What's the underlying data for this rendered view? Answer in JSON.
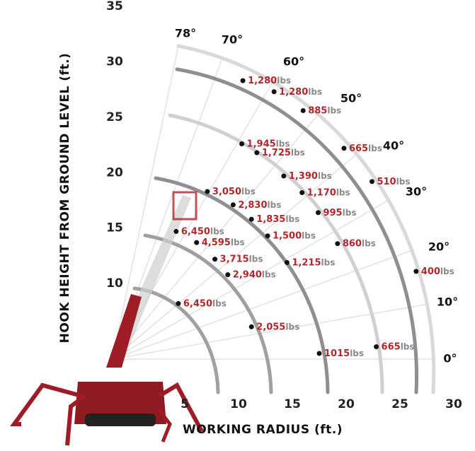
{
  "chart_data": {
    "type": "scatter",
    "xlabel": "WORKING RADIUS (ft.)",
    "ylabel": "HOOK HEIGHT FROM GROUND LEVEL (ft.)",
    "xlim": [
      0,
      30
    ],
    "ylim": [
      0,
      35
    ],
    "xticks": [
      5,
      10,
      15,
      20,
      25,
      30
    ],
    "yticks": [
      10,
      15,
      20,
      25,
      30,
      35
    ],
    "unit": "lbs",
    "point_color": "#111111",
    "angle_labels": [
      "78°",
      "70°",
      "60°",
      "50°",
      "40°",
      "30°",
      "20°",
      "10°",
      "0°"
    ],
    "series": [
      {
        "x": [
          10.4,
          13.3,
          16.0,
          19.8,
          22.4,
          26.5,
          10.3,
          11.7,
          14.2,
          15.9,
          17.4,
          19.2,
          7.1,
          9.5,
          11.2,
          12.7,
          14.5,
          17.5,
          22.8,
          4.2,
          6.1,
          7.8,
          9.0,
          4.4,
          11.2
        ],
        "values": [
          28.3,
          27.3,
          25.6,
          22.2,
          19.2,
          11.1,
          22.6,
          21.8,
          19.7,
          18.2,
          16.4,
          13.6,
          18.3,
          17.1,
          15.8,
          14.3,
          11.9,
          3.7,
          4.3,
          14.7,
          13.7,
          12.2,
          10.8,
          8.2,
          6.1
        ],
        "point_labels": [
          "1,280",
          "1,280",
          "885",
          "665",
          "510",
          "400",
          "1,945",
          "1,725",
          "1,390",
          "1,170",
          "995",
          "860",
          "3,050",
          "2,830",
          "1,835",
          "1,500",
          "1,215",
          "1015",
          "665",
          "6,450",
          "4,595",
          "3,715",
          "2,940",
          "6,450",
          "2,055"
        ]
      }
    ]
  }
}
